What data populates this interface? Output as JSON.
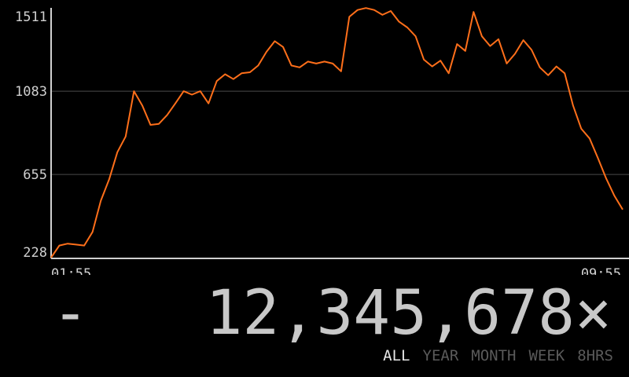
{
  "chart_data": {
    "type": "line",
    "title": "",
    "xlabel": "",
    "ylabel": "",
    "x_ticks": [
      "01:55",
      "09:55"
    ],
    "y_ticks": [
      228,
      655,
      1083,
      1511
    ],
    "ylim": [
      228,
      1511
    ],
    "grid": true,
    "line_color": "#ff6f1a",
    "series": [
      {
        "values": [
          228,
          290,
          300,
          295,
          290,
          360,
          520,
          630,
          770,
          850,
          1083,
          1010,
          910,
          915,
          960,
          1020,
          1083,
          1065,
          1083,
          1020,
          1135,
          1170,
          1145,
          1175,
          1180,
          1215,
          1285,
          1340,
          1310,
          1215,
          1205,
          1235,
          1225,
          1235,
          1225,
          1185,
          1465,
          1500,
          1510,
          1500,
          1475,
          1495,
          1440,
          1410,
          1365,
          1245,
          1210,
          1240,
          1175,
          1325,
          1290,
          1490,
          1365,
          1315,
          1350,
          1225,
          1275,
          1345,
          1295,
          1205,
          1165,
          1210,
          1175,
          1010,
          890,
          840,
          740,
          635,
          545,
          475
        ]
      }
    ]
  },
  "display": {
    "value": "12,345,678×",
    "prefix": "-"
  },
  "ranges": [
    {
      "label": "ALL",
      "active": true
    },
    {
      "label": "YEAR",
      "active": false
    },
    {
      "label": "MONTH",
      "active": false
    },
    {
      "label": "WEEK",
      "active": false
    },
    {
      "label": "8HRS",
      "active": false
    }
  ],
  "colors": {
    "background": "#000000",
    "line": "#ff6f1a",
    "text": "#c8c8c8",
    "active_tab": "#e8e8e8",
    "inactive_tab": "#5a5a5a"
  }
}
